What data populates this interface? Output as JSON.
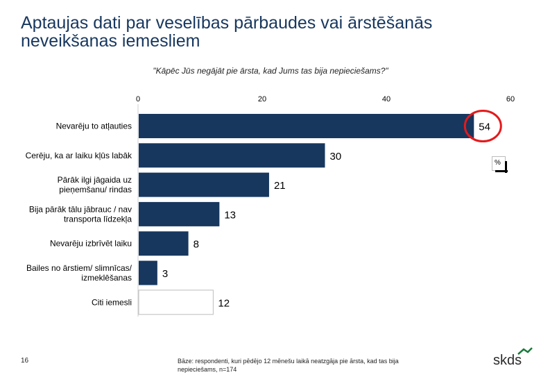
{
  "page": {
    "title": "Aptaujas dati par veselības pārbaudes vai ārstēšanās neveikšanas iemesliem",
    "subtitle": "\"Kāpēc Jūs negājāt pie ārsta, kad Jums tas bija nepieciešams?\"",
    "page_number": "16",
    "footnote": "Bāze: respondenti, kuri pēdējo 12 mēnešu laikā neatzgāja pie ārsta, kad tas bija nepieciešams, n=174",
    "unit_label": "%",
    "logo_text": "skds"
  },
  "colors": {
    "bar": "#17375e",
    "bar_last": "#ffffff",
    "highlight_circle": "#e41a1c",
    "title": "#17375e"
  },
  "chart_data": {
    "type": "bar",
    "orientation": "horizontal",
    "title": "\"Kāpēc Jūs negājāt pie ārsta, kad Jums tas bija nepieciešams?\"",
    "xlim": [
      0,
      60
    ],
    "xticks": [
      0,
      20,
      40,
      60
    ],
    "xaxis_position": "top",
    "unit": "%",
    "categories": [
      [
        "Nevarēju to atļauties"
      ],
      [
        "Cerēju, ka ar laiku kļūs labāk"
      ],
      [
        "Pārāk ilgi jāgaida uz",
        "pieņemšanu/ rindas"
      ],
      [
        "Bija pārāk tālu jābrauc / nav",
        "transporta līdzekļa"
      ],
      [
        "Nevarēju izbrīvēt laiku"
      ],
      [
        "Bailes no ārstiem/ slimnīcas/",
        "izmeklēšanas"
      ],
      [
        "Citi iemesli"
      ]
    ],
    "values": [
      54,
      30,
      21,
      13,
      8,
      3,
      12
    ],
    "highlighted_index": 0,
    "grid": false,
    "legend": "none"
  }
}
